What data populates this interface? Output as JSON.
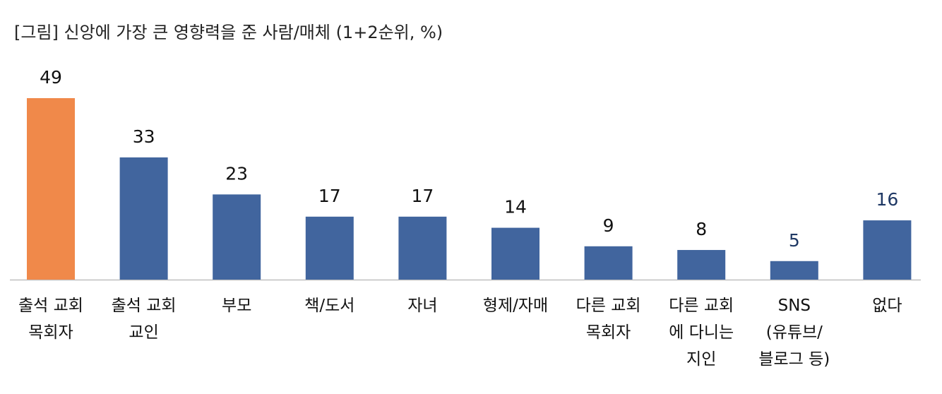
{
  "title": "[그림] 신앙에 가장 큰 영향력을 준 사람/매체 (1+2순위, %)",
  "colors": {
    "highlight": "#f0894a",
    "bar": "#41659e",
    "axis": "#bfbfbf",
    "label_dark": "#1f3864"
  },
  "chart_data": {
    "type": "bar",
    "title": "[그림] 신앙에 가장 큰 영향력을 준 사람/매체 (1+2순위, %)",
    "xlabel": "",
    "ylabel": "",
    "ylim": [
      0,
      49
    ],
    "grid": false,
    "categories": [
      [
        "출석 교회",
        "목회자"
      ],
      [
        "출석 교회",
        "교인"
      ],
      [
        "부모"
      ],
      [
        "책/도서"
      ],
      [
        "자녀"
      ],
      [
        "형제/자매"
      ],
      [
        "다른 교회",
        "목회자"
      ],
      [
        "다른 교회",
        "에 다니는",
        "지인"
      ],
      [
        "SNS",
        "(유튜브/",
        "블로그 등)"
      ],
      [
        "없다"
      ]
    ],
    "values": [
      49,
      33,
      23,
      17,
      17,
      14,
      9,
      8,
      5,
      16
    ],
    "highlight_index": 0,
    "value_label_dark": [
      false,
      false,
      false,
      false,
      false,
      false,
      false,
      false,
      true,
      true
    ]
  }
}
